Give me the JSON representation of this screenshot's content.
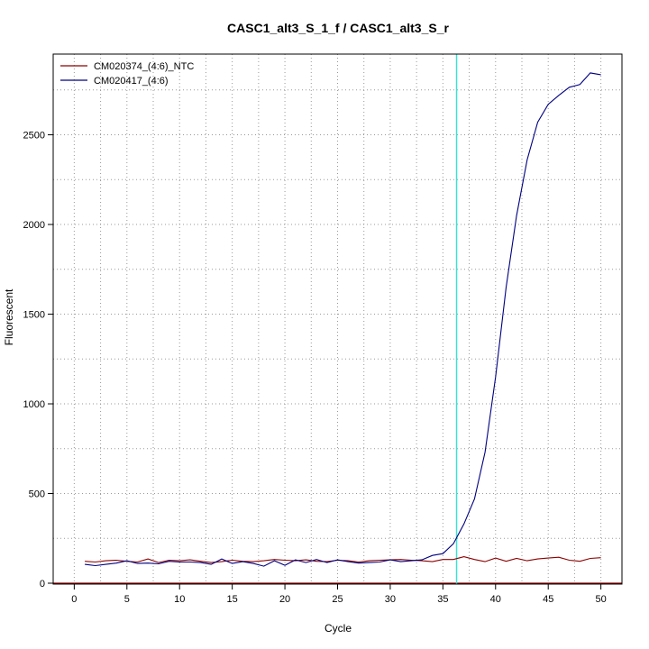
{
  "chart_data": {
    "type": "line",
    "title": "CASC1_alt3_S_1_f / CASC1_alt3_S_r",
    "xlabel": "Cycle",
    "ylabel": "Fluorescent",
    "xlim": [
      -2,
      52
    ],
    "ylim": [
      -5,
      2950
    ],
    "xticks": [
      0,
      5,
      10,
      15,
      20,
      25,
      30,
      35,
      40,
      45,
      50
    ],
    "yticks": [
      0,
      500,
      1000,
      1500,
      2000,
      2500
    ],
    "grid": true,
    "legend_position": "top-left",
    "threshold_cycle": 36.3,
    "threshold_color": "#40e0d0",
    "baseline_color": "#8b0000",
    "series": [
      {
        "name": "CM020374_(4:6)_NTC",
        "color": "#8b0000",
        "x": [
          1,
          2,
          3,
          4,
          5,
          6,
          7,
          8,
          9,
          10,
          11,
          12,
          13,
          14,
          15,
          16,
          17,
          18,
          19,
          20,
          21,
          22,
          23,
          24,
          25,
          26,
          27,
          28,
          29,
          30,
          31,
          32,
          33,
          34,
          35,
          36,
          37,
          38,
          39,
          40,
          41,
          42,
          43,
          44,
          45,
          46,
          47,
          48,
          49,
          50
        ],
        "y": [
          122,
          118,
          125,
          128,
          122,
          118,
          135,
          115,
          128,
          125,
          130,
          122,
          115,
          120,
          128,
          122,
          120,
          125,
          132,
          128,
          125,
          130,
          122,
          120,
          128,
          125,
          118,
          125,
          128,
          130,
          132,
          128,
          125,
          120,
          132,
          132,
          148,
          132,
          120,
          140,
          122,
          138,
          125,
          135,
          140,
          145,
          128,
          122,
          138,
          142
        ]
      },
      {
        "name": "CM020417_(4:6)",
        "color": "#000080",
        "x": [
          1,
          2,
          3,
          4,
          5,
          6,
          7,
          8,
          9,
          10,
          11,
          12,
          13,
          14,
          15,
          16,
          17,
          18,
          19,
          20,
          21,
          22,
          23,
          24,
          25,
          26,
          27,
          28,
          29,
          30,
          31,
          32,
          33,
          34,
          35,
          36,
          37,
          38,
          39,
          40,
          41,
          42,
          43,
          44,
          45,
          46,
          47,
          48,
          49,
          50
        ],
        "y": [
          105,
          98,
          105,
          112,
          125,
          110,
          112,
          108,
          122,
          118,
          118,
          115,
          105,
          135,
          110,
          120,
          110,
          95,
          125,
          100,
          130,
          115,
          132,
          115,
          130,
          120,
          112,
          115,
          118,
          130,
          120,
          125,
          130,
          155,
          165,
          220,
          330,
          470,
          730,
          1150,
          1650,
          2050,
          2360,
          2570,
          2670,
          2720,
          2765,
          2780,
          2845,
          2835
        ]
      }
    ]
  }
}
